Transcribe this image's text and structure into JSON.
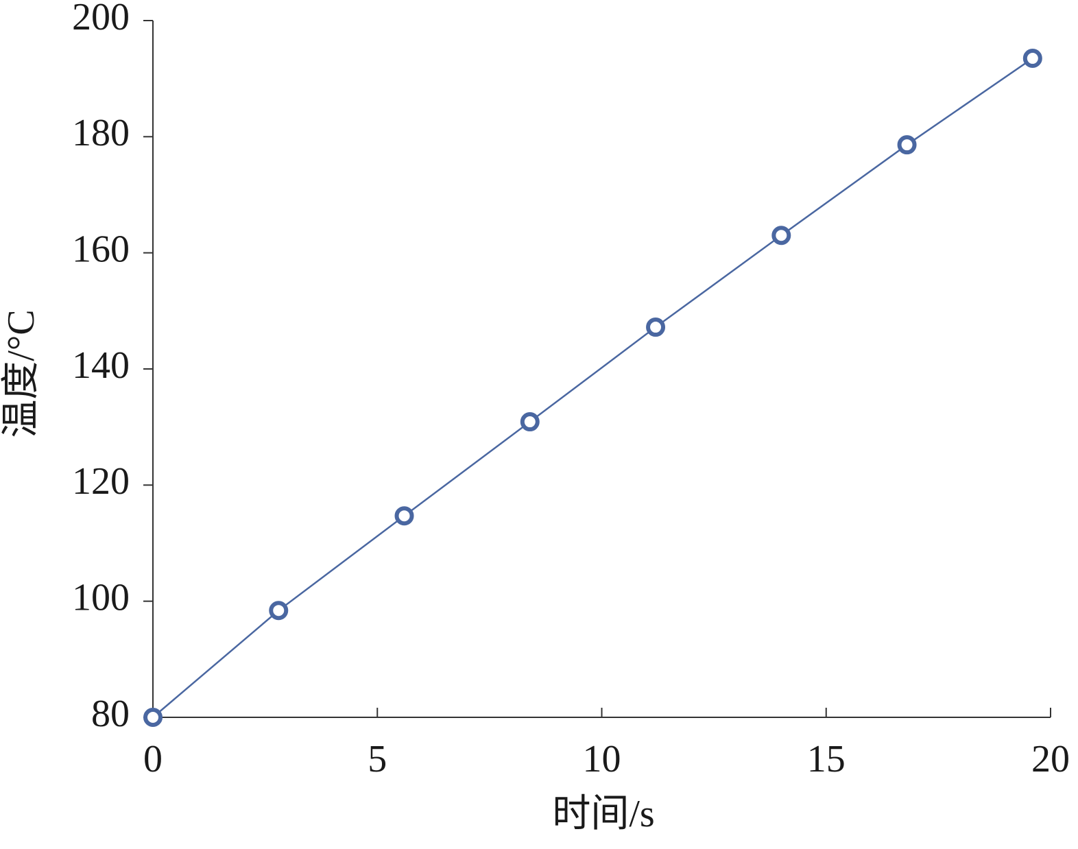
{
  "chart_data": {
    "type": "line",
    "xlabel": "时间/s",
    "ylabel": "温度/°C",
    "x": [
      0,
      2.8,
      5.6,
      8.4,
      11.2,
      14,
      16.8,
      19.6
    ],
    "series": [
      {
        "name": "温度",
        "color": "#4a67a1",
        "values": [
          80,
          98.4,
          114.7,
          130.9,
          147.2,
          163.0,
          178.6,
          193.5
        ]
      }
    ],
    "xlim": [
      0,
      20
    ],
    "xticks": [
      0,
      5,
      10,
      15,
      20
    ],
    "ylim": [
      80,
      200
    ],
    "yticks": [
      80,
      100,
      120,
      140,
      160,
      180,
      200
    ],
    "grid": false,
    "legend": false
  }
}
